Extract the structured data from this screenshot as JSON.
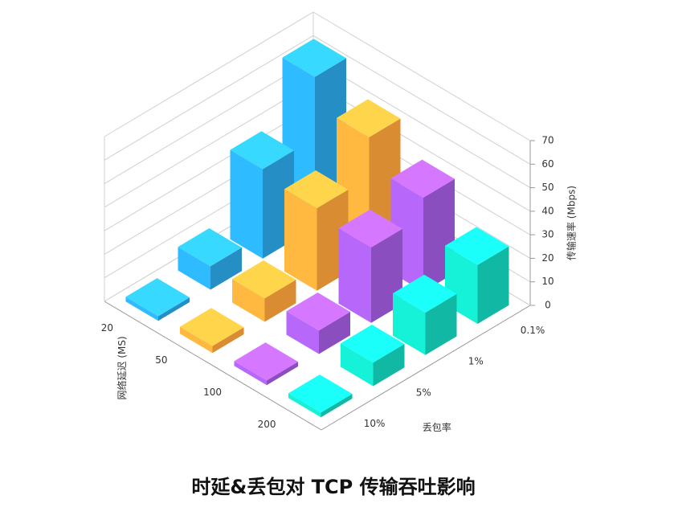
{
  "chart_data": {
    "type": "bar3d",
    "title": "时延&丢包对 TCP 传输吞吐影响",
    "x_label": "网络延迟 (MS)",
    "y_label": "丢包率",
    "z_label": "传输速率 (Mbps)",
    "categories": [
      "20",
      "50",
      "100",
      "200"
    ],
    "y_categories": [
      "0.1%",
      "1%",
      "5%",
      "10%"
    ],
    "zlim": [
      0,
      70
    ],
    "zticks": [
      0,
      10,
      20,
      30,
      40,
      50,
      60,
      70
    ],
    "grid": true,
    "series": [
      {
        "name": "20",
        "color": "#2aa7e8",
        "values": [
          64,
          38,
          10,
          2
        ]
      },
      {
        "name": "50",
        "color": "#ffa53a",
        "values": [
          52,
          35,
          10,
          3
        ]
      },
      {
        "name": "100",
        "color": "#a45ce0",
        "values": [
          40,
          32,
          10,
          2
        ]
      },
      {
        "name": "200",
        "color": "#14d8c0",
        "values": [
          25,
          18,
          10,
          2
        ]
      }
    ]
  }
}
